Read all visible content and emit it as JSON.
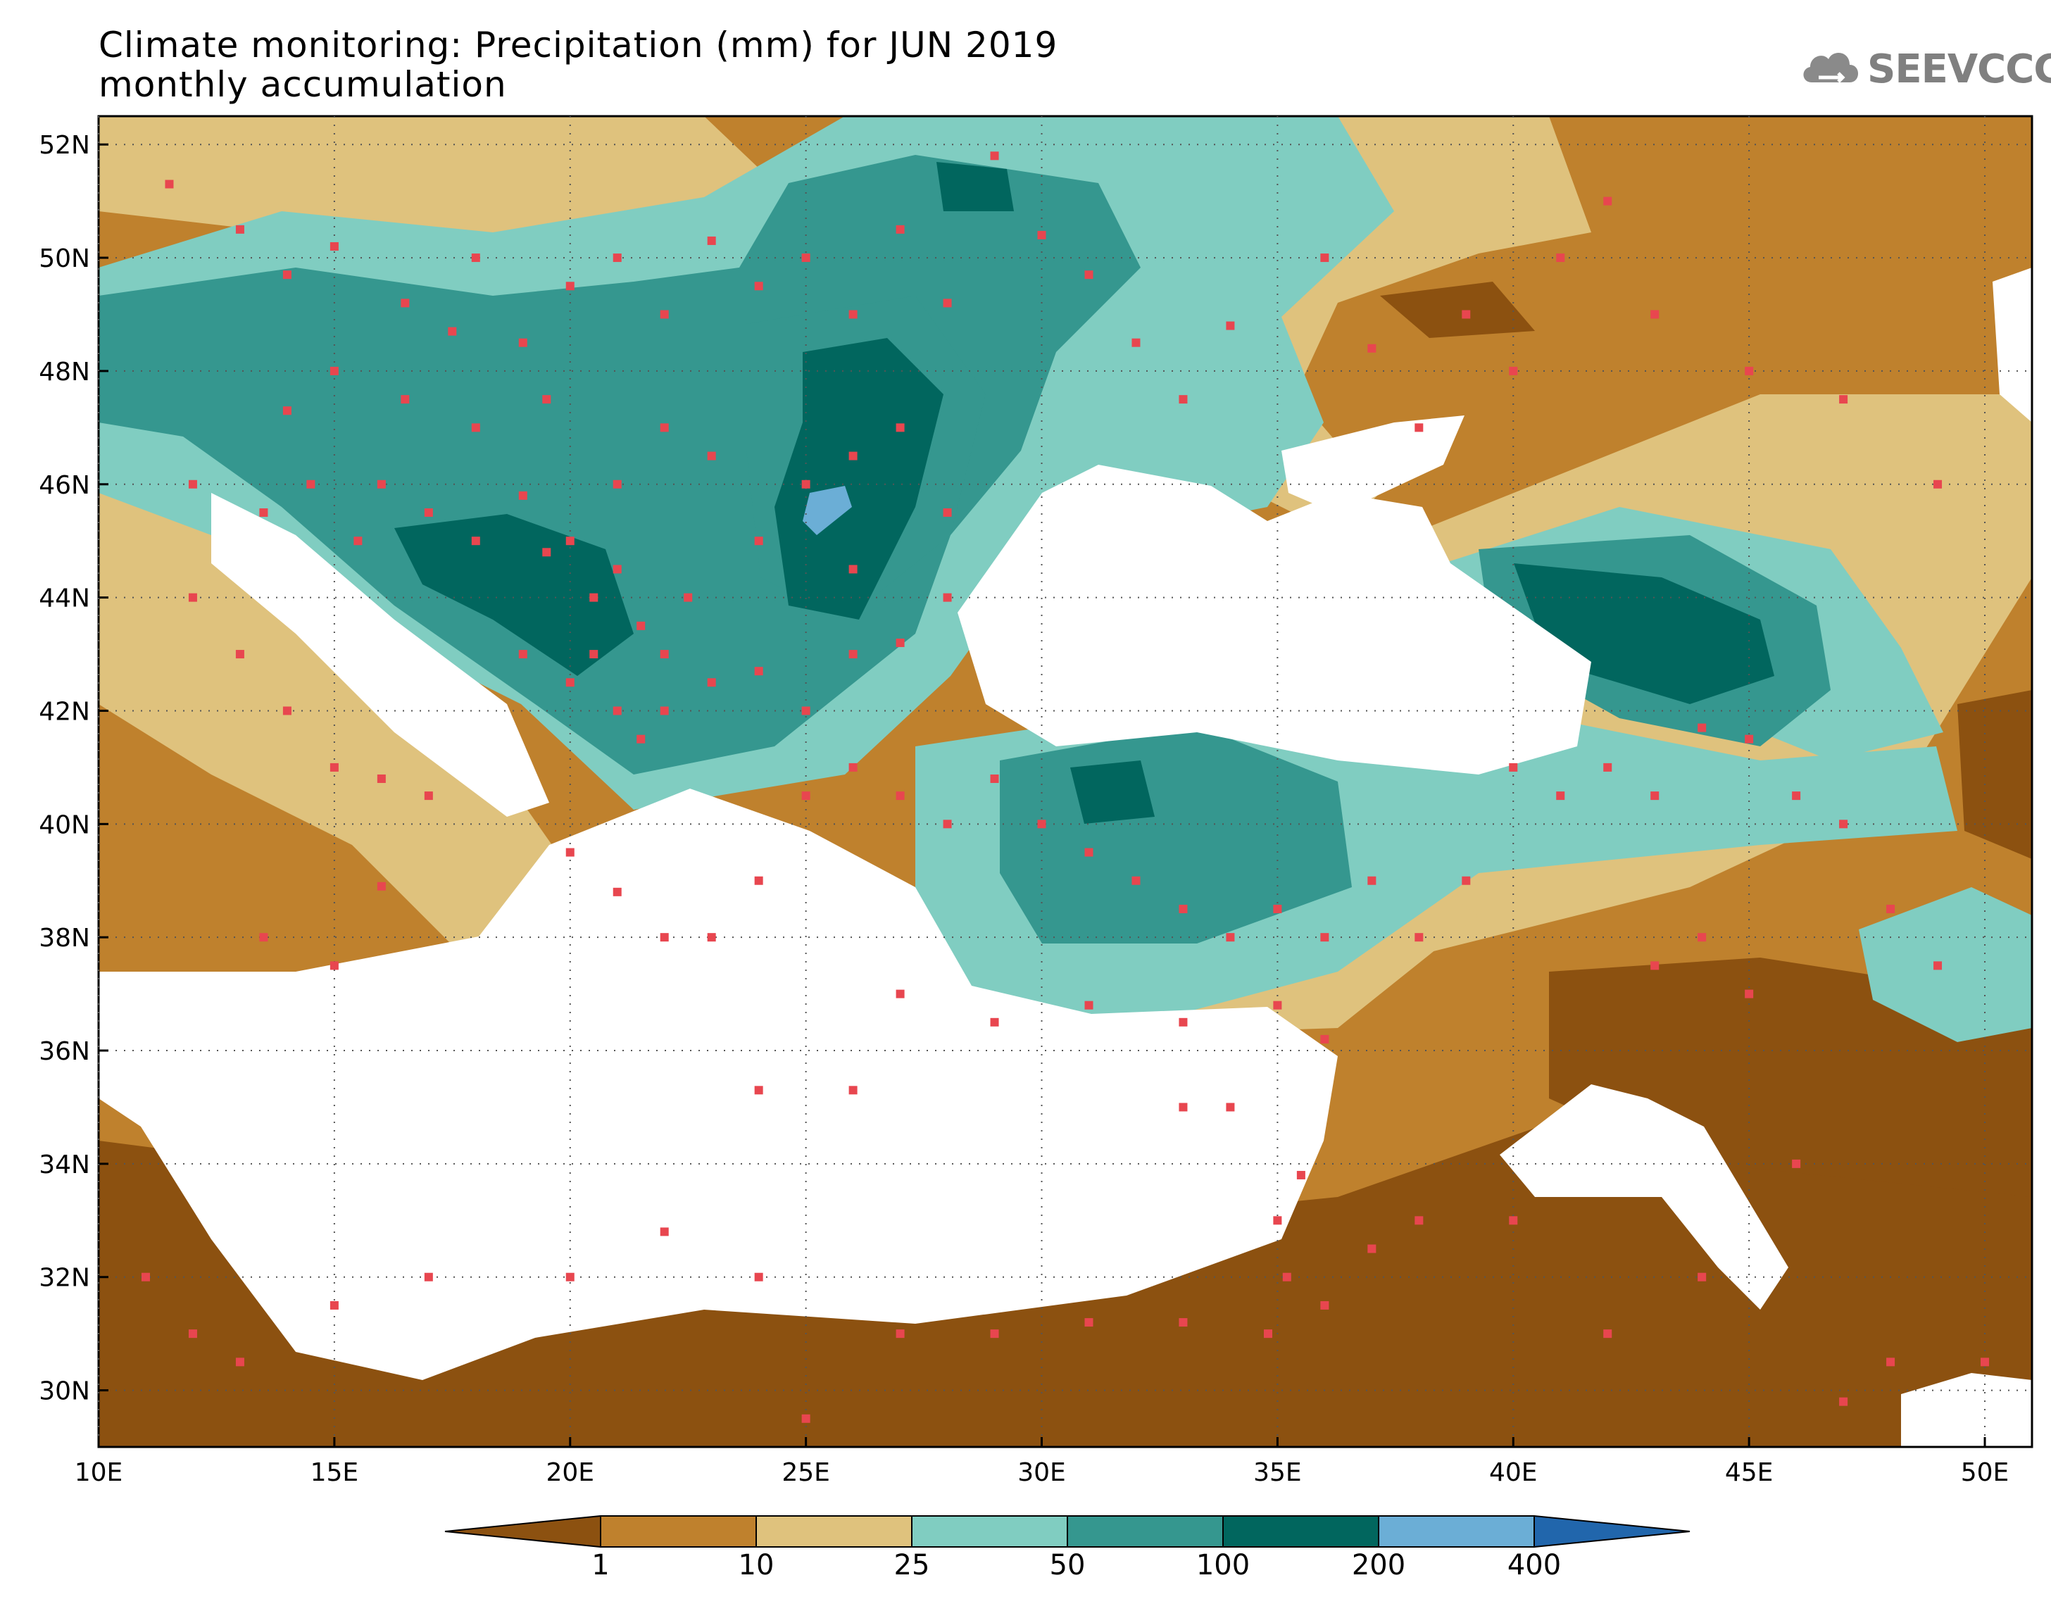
{
  "header": {
    "title_line1": "Climate monitoring: Precipitation (mm) for JUN 2019",
    "title_line2": "monthly accumulation",
    "logo_text": "SEEVCCC",
    "logo_icon": "cloud-icon"
  },
  "map": {
    "region": "Southeast Europe / Eastern Mediterranean / Black Sea",
    "lat_range": [
      29,
      52.5
    ],
    "lon_range": [
      10,
      51
    ],
    "lat_labels": [
      "52N",
      "50N",
      "48N",
      "46N",
      "44N",
      "42N",
      "40N",
      "38N",
      "36N",
      "34N",
      "32N",
      "30N"
    ],
    "lon_labels": [
      "10E",
      "15E",
      "20E",
      "25E",
      "30E",
      "35E",
      "40E",
      "45E",
      "50E"
    ],
    "grid": "dotted",
    "station_marker_color": "#e8464f",
    "land_only_field": true
  },
  "colorbar": {
    "levels": [
      "1",
      "10",
      "25",
      "50",
      "100",
      "200",
      "400"
    ],
    "colors": {
      "lt_1": "#8c5110",
      "c1_10": "#bf812d",
      "c10_25": "#dfc27d",
      "c25_50": "#80cdc1",
      "c50_100": "#35978f",
      "c100_200": "#01665e",
      "c200_400": "#6baed6",
      "gt_400": "#2166ac"
    }
  }
}
